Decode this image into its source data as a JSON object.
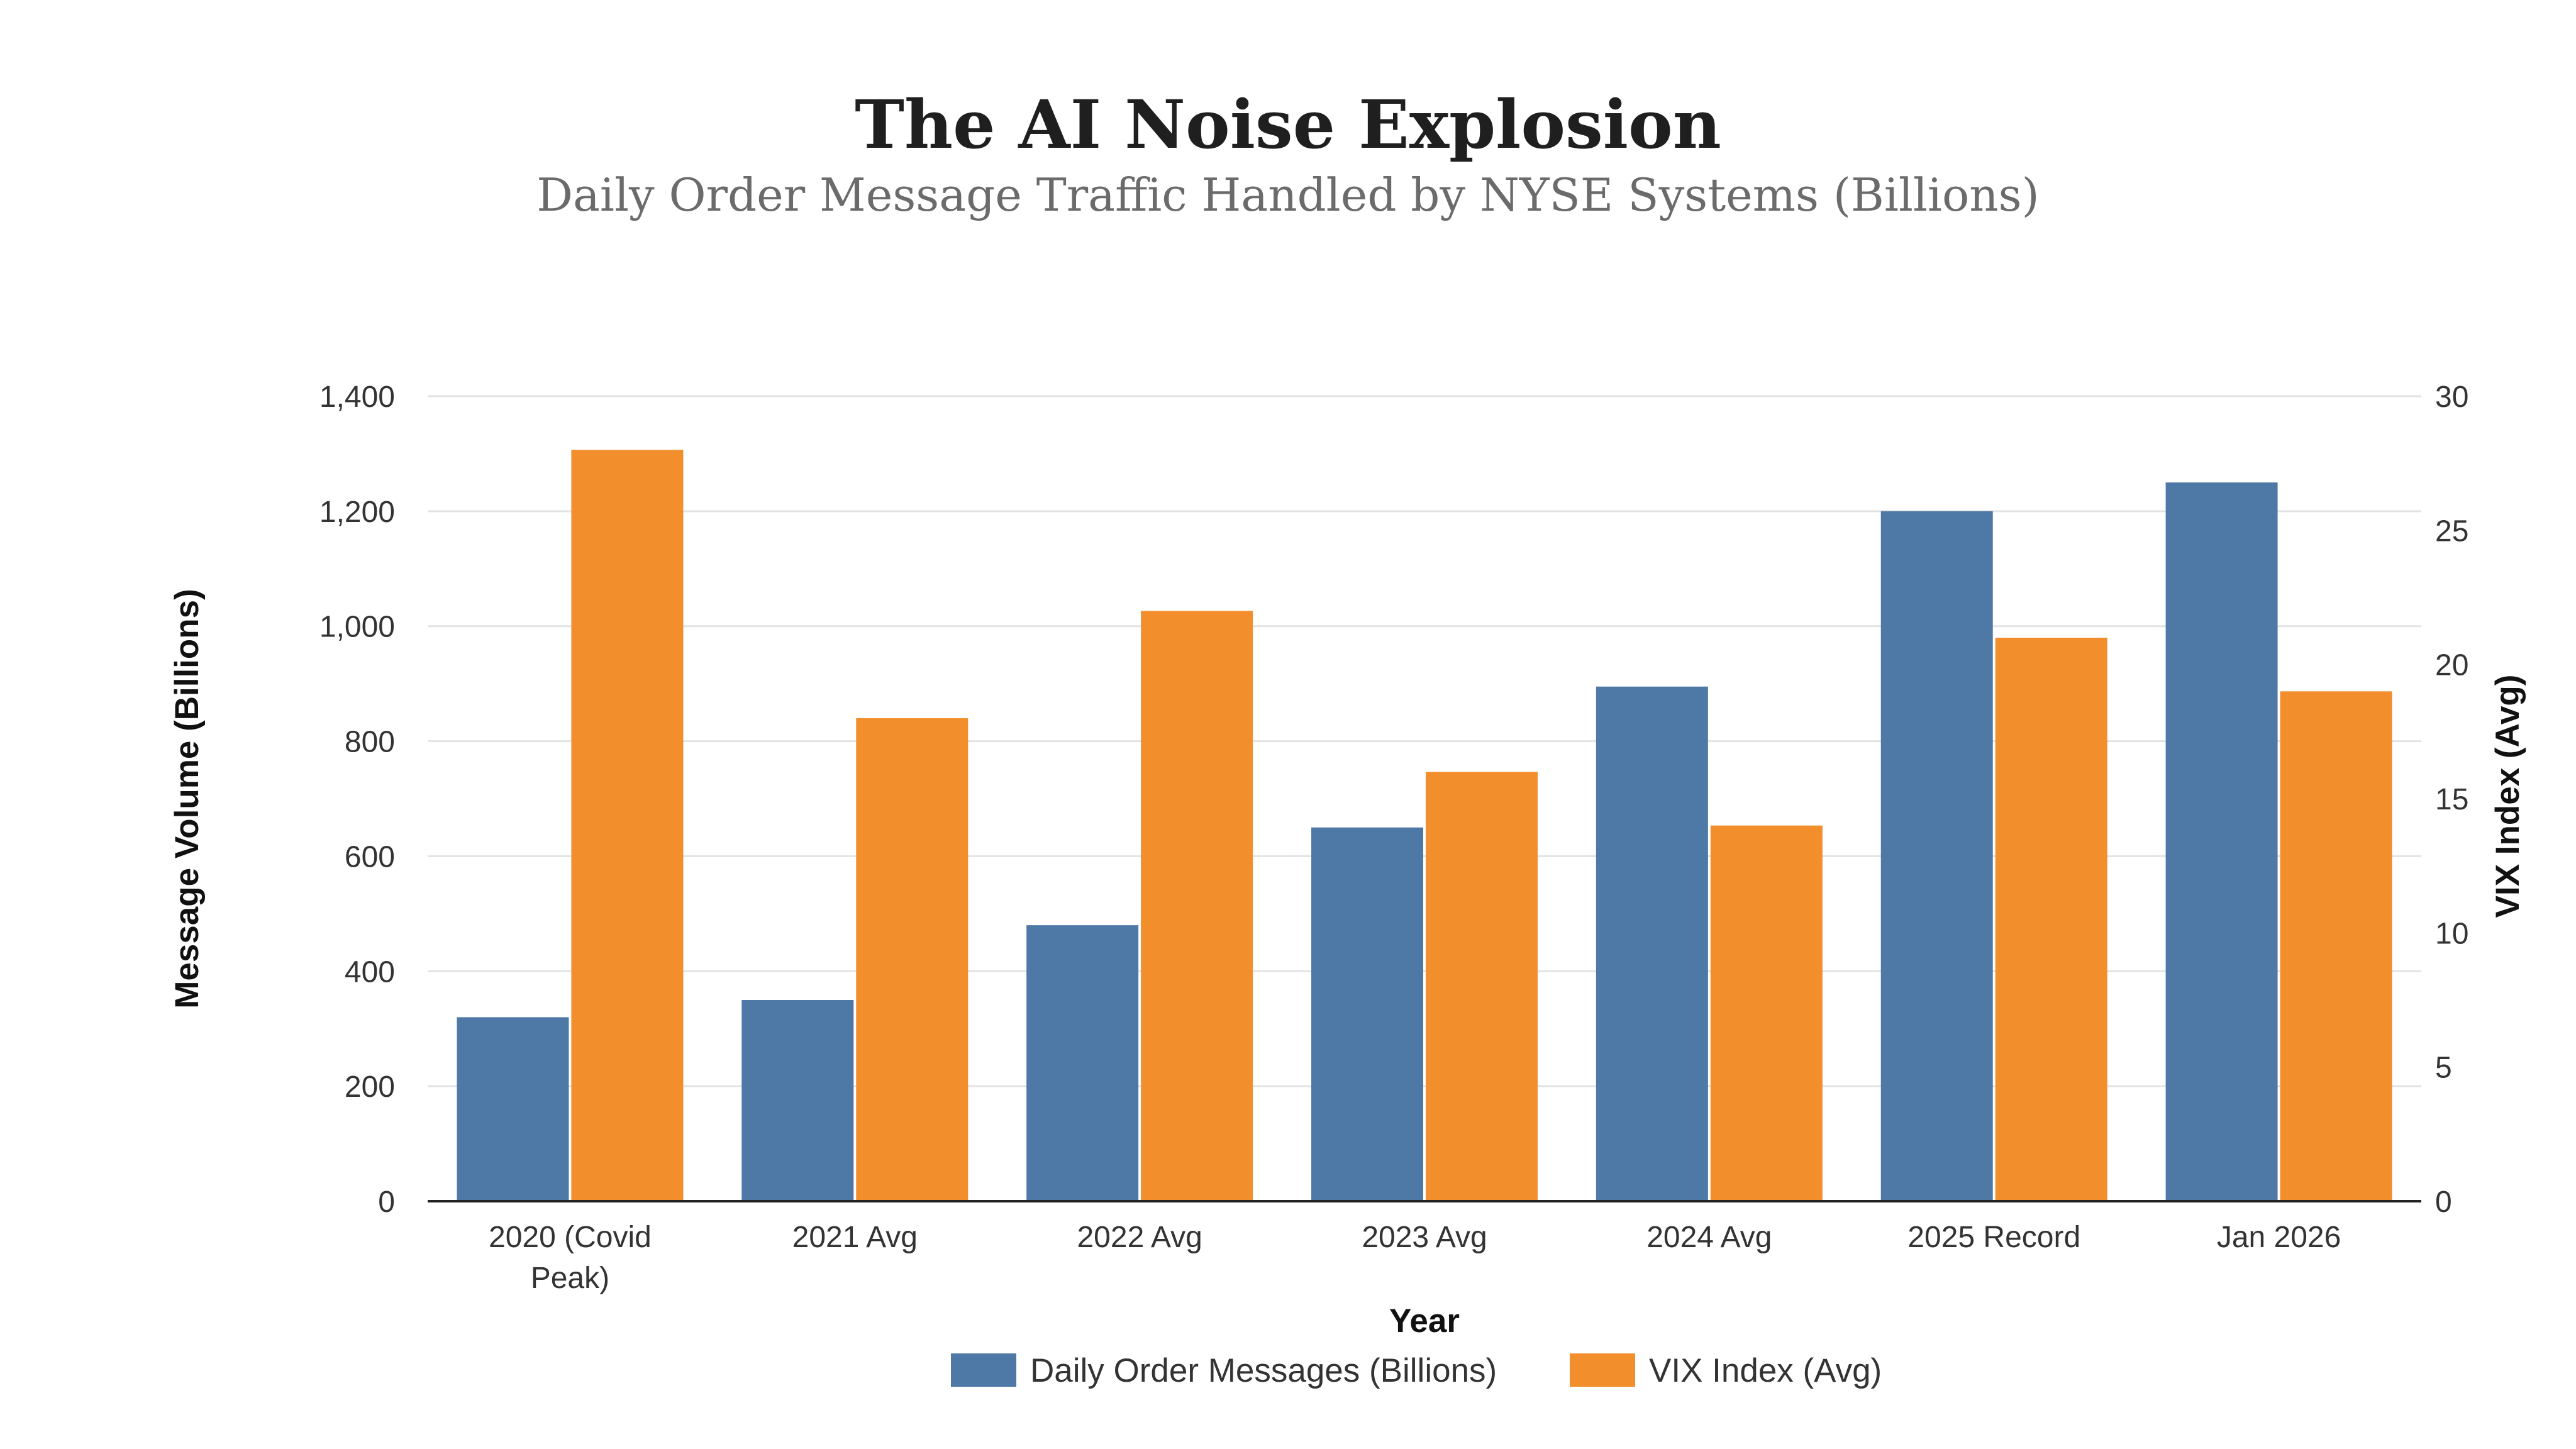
{
  "chart_data": {
    "type": "bar",
    "title": "The AI Noise Explosion",
    "subtitle": "Daily Order Message Traffic Handled by NYSE Systems (Billions)",
    "xlabel": "Year",
    "ylabel": "Message Volume (Billions)",
    "y2label": "VIX Index (Avg)",
    "categories": [
      [
        "2020 (Covid",
        "Peak)"
      ],
      [
        "2021 Avg"
      ],
      [
        "2022 Avg"
      ],
      [
        "2023 Avg"
      ],
      [
        "2024 Avg"
      ],
      [
        "2025 Record"
      ],
      [
        "Jan 2026"
      ]
    ],
    "series": [
      {
        "name": "Daily Order Messages (Billions)",
        "axis": "left",
        "color": "#4e79a7",
        "values": [
          320,
          350,
          480,
          650,
          895,
          1200,
          1250
        ]
      },
      {
        "name": "VIX Index (Avg)",
        "axis": "right",
        "color": "#f28e2b",
        "values": [
          28,
          18,
          22,
          16,
          14,
          21,
          19
        ]
      }
    ],
    "ylim": [
      0,
      1400
    ],
    "y2lim": [
      0,
      30
    ],
    "yticks": [
      "0",
      "200",
      "400",
      "600",
      "800",
      "1,000",
      "1,200",
      "1,400"
    ],
    "y2ticks": [
      "0",
      "5",
      "10",
      "15",
      "20",
      "25",
      "30"
    ],
    "grid": true,
    "legend_position": "bottom"
  }
}
